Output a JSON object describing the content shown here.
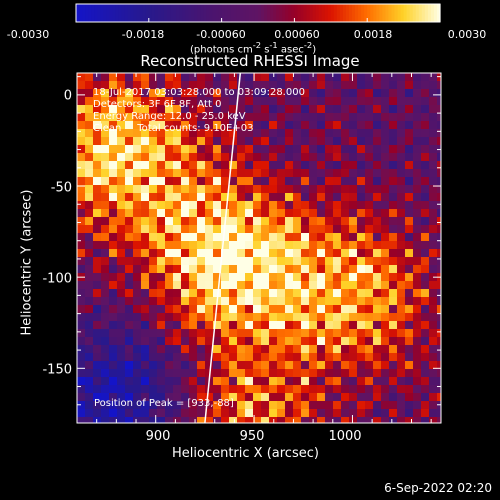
{
  "colorbar": {
    "ticks": [
      "-0.0030",
      "-0.0018",
      "-0.00060",
      "0.00060",
      "0.0018",
      "0.0030"
    ],
    "label_html": "(photons cm<sup>-2</sup> s<sup>-1</sup> asec<sup>-2</sup>)"
  },
  "header": {
    "title": "Reconstructed RHESSI Image"
  },
  "info": {
    "line1": "18-Jul-2017 03:03:28.000 to 03:09:28.000",
    "line2": "Detectors: 3F 6F 8F, Att 0",
    "line3": "Energy Range: 12.0 - 25.0 keV",
    "line4": "Clean     Total counts: 9.10E+03"
  },
  "peak_text": "Position of Peak = [933,-88]",
  "footer_date": "6-Sep-2022 02:20",
  "chart_data": {
    "type": "heatmap",
    "title": "Reconstructed RHESSI Image",
    "xlabel": "Heliocentric X (arcsec)",
    "ylabel": "Heliocentric Y (arcsec)",
    "xlim": [
      860,
      1045
    ],
    "ylim": [
      -180,
      12
    ],
    "x_ticks": [
      "900",
      "950",
      "1000"
    ],
    "y_ticks": [
      "0",
      "-50",
      "-100",
      "-150"
    ],
    "colorbar_range": [
      -0.003,
      0.003
    ],
    "colormap": "hot-with-blue-negative",
    "peak_position": [
      933,
      -88
    ],
    "limb_line": [
      [
        943,
        12
      ],
      [
        925,
        -180
      ]
    ],
    "bright_regions": [
      {
        "x": 880,
        "y": -30,
        "intensity": 0.0028
      },
      {
        "x": 935,
        "y": -90,
        "intensity": 0.003
      },
      {
        "x": 1000,
        "y": -110,
        "intensity": 0.0022
      },
      {
        "x": 940,
        "y": -175,
        "intensity": 0.002
      }
    ],
    "dark_region": {
      "x": 885,
      "y": -165,
      "intensity": -0.0025
    }
  }
}
